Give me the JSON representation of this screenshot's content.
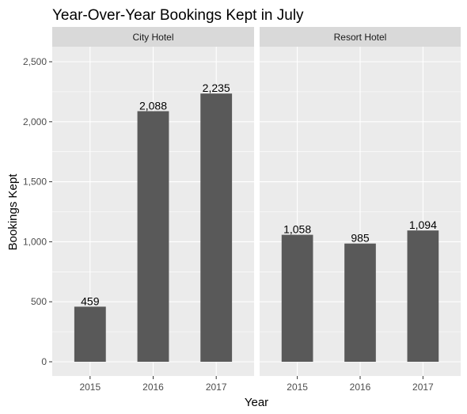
{
  "chart_data": {
    "type": "bar",
    "title": "Year-Over-Year Bookings Kept in July",
    "xlabel": "Year",
    "ylabel": "Bookings Kept",
    "ylim": [
      0,
      2650
    ],
    "yticks": [
      0,
      500,
      1000,
      1500,
      2000,
      2500
    ],
    "ytick_labels": [
      "0",
      "500",
      "1,000",
      "1,500",
      "2,000",
      "2,500"
    ],
    "grid": true,
    "categories": [
      "2015",
      "2016",
      "2017"
    ],
    "facets": [
      {
        "name": "City Hotel",
        "values": [
          459,
          2088,
          2235
        ],
        "labels": [
          "459",
          "2,088",
          "2,235"
        ]
      },
      {
        "name": "Resort Hotel",
        "values": [
          1058,
          985,
          1094
        ],
        "labels": [
          "1,058",
          "985",
          "1,094"
        ]
      }
    ],
    "colors": {
      "bar": "#595959",
      "panel": "#ebebeb",
      "strip": "#d9d9d9",
      "grid": "#ffffff"
    }
  }
}
